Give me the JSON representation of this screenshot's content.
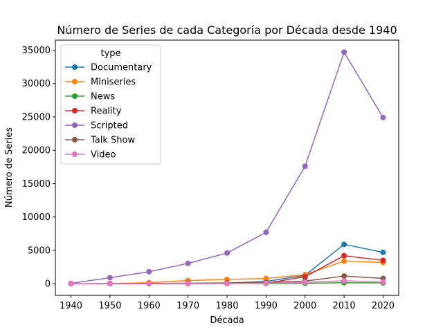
{
  "chart_data": {
    "type": "line",
    "title": "Número de Series de cada Categoría por Década desde 1940",
    "xlabel": "Década",
    "ylabel": "Número de Series",
    "x": [
      1940,
      1950,
      1960,
      1970,
      1980,
      1990,
      2000,
      2010,
      2020
    ],
    "ylim": [
      -1740,
      36500
    ],
    "yticks": [
      0,
      5000,
      10000,
      15000,
      20000,
      25000,
      30000,
      35000
    ],
    "grid": false,
    "legend": {
      "title": "type",
      "placement": "top-left"
    },
    "series": [
      {
        "name": "Documentary",
        "color": "#1f77b4",
        "values": [
          0,
          5,
          20,
          50,
          100,
          350,
          1250,
          5900,
          4700
        ]
      },
      {
        "name": "Miniseries",
        "color": "#ff7f0e",
        "values": [
          0,
          30,
          150,
          480,
          650,
          780,
          1350,
          3400,
          3200
        ]
      },
      {
        "name": "News",
        "color": "#2ca02c",
        "values": [
          0,
          5,
          10,
          20,
          30,
          40,
          60,
          150,
          120
        ]
      },
      {
        "name": "Reality",
        "color": "#d62728",
        "values": [
          0,
          5,
          10,
          20,
          40,
          80,
          1050,
          4200,
          3500
        ]
      },
      {
        "name": "Scripted",
        "color": "#9467bd",
        "values": [
          50,
          900,
          1800,
          3050,
          4600,
          7700,
          17600,
          34700,
          24900
        ]
      },
      {
        "name": "Talk Show",
        "color": "#8c564b",
        "values": [
          0,
          10,
          40,
          80,
          120,
          160,
          400,
          1150,
          800
        ]
      },
      {
        "name": "Video",
        "color": "#e377c2",
        "values": [
          0,
          5,
          10,
          20,
          40,
          80,
          200,
          450,
          250
        ]
      }
    ]
  }
}
